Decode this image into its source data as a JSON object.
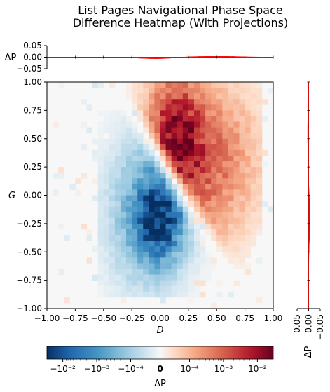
{
  "figure": {
    "title_line1": "List Pages Navigational Phase Space",
    "title_line2": "Difference Heatmap (With Projections)"
  },
  "chart_data": {
    "type": "heatmap",
    "title": "List Pages Navigational Phase Space Difference Heatmap (With Projections)",
    "xlabel": "D",
    "ylabel": "G",
    "xlim": [
      -1.0,
      1.0
    ],
    "ylim": [
      -1.0,
      1.0
    ],
    "xticks": [
      "−1.00",
      "−0.75",
      "−0.50",
      "−0.25",
      "0.00",
      "0.25",
      "0.50",
      "0.75",
      "1.00"
    ],
    "yticks": [
      "1.00",
      "0.75",
      "0.50",
      "0.25",
      "0.00",
      "−0.25",
      "−0.50",
      "−0.75",
      "−1.00"
    ],
    "grid_bins": 40,
    "regions": [
      {
        "name": "negative lobe",
        "sign": "negative",
        "center": [
          -0.05,
          -0.1
        ],
        "peak_abs": 0.02
      },
      {
        "name": "positive lobe",
        "sign": "positive",
        "center": [
          0.35,
          0.4
        ],
        "peak_abs": 0.02
      }
    ],
    "boundary_line": {
      "points": [
        [
          -0.3,
          0.75
        ],
        [
          0.2,
          0.0
        ],
        [
          0.55,
          -0.65
        ]
      ]
    },
    "colorbar": {
      "label": "ΔP",
      "scale": "symlog",
      "ticks": [
        "−10⁻²",
        "−10⁻³",
        "−10⁻⁴",
        "0",
        "10⁻⁴",
        "10⁻³",
        "10⁻²"
      ],
      "colormap": "RdBu_r",
      "min_color": "#053061",
      "max_color": "#67001f",
      "zero_color": "#f7f7f7"
    },
    "top_projection": {
      "ylabel": "ΔP",
      "ylim": [
        -0.05,
        0.05
      ],
      "yticks": [
        "0.05",
        "0.00",
        "−0.05"
      ],
      "color": "#ff0000"
    },
    "right_projection": {
      "xlabel": "ΔP",
      "xlim": [
        0.05,
        -0.05
      ],
      "xticks": [
        "0.05",
        "0.00",
        "−0.05"
      ],
      "color": "#ff0000"
    }
  }
}
